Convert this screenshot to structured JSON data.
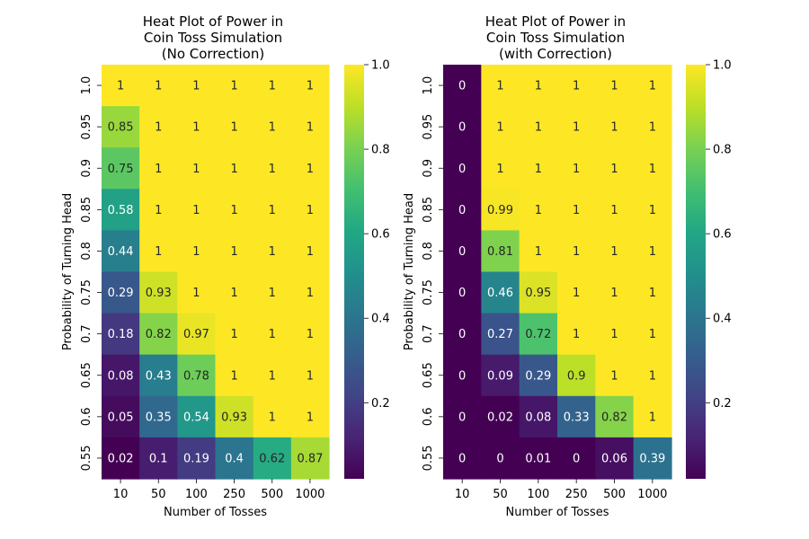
{
  "chart_data": [
    {
      "type": "heatmap",
      "title_lines": [
        "Heat Plot of Power in",
        "Coin Toss Simulation",
        "(No Correction)"
      ],
      "xlabel": "Number of Tosses",
      "ylabel": "Probability of Turning Head",
      "x_categories": [
        "10",
        "50",
        "100",
        "250",
        "500",
        "1000"
      ],
      "y_categories": [
        "1.0",
        "0.95",
        "0.9",
        "0.85",
        "0.8",
        "0.75",
        "0.7",
        "0.65",
        "0.6",
        "0.55"
      ],
      "values": [
        [
          1,
          1,
          1,
          1,
          1,
          1
        ],
        [
          0.85,
          1,
          1,
          1,
          1,
          1
        ],
        [
          0.75,
          1,
          1,
          1,
          1,
          1
        ],
        [
          0.58,
          1,
          1,
          1,
          1,
          1
        ],
        [
          0.44,
          1,
          1,
          1,
          1,
          1
        ],
        [
          0.29,
          0.93,
          1,
          1,
          1,
          1
        ],
        [
          0.18,
          0.82,
          0.97,
          1,
          1,
          1
        ],
        [
          0.08,
          0.43,
          0.78,
          1,
          1,
          1
        ],
        [
          0.05,
          0.35,
          0.54,
          0.93,
          1,
          1
        ],
        [
          0.02,
          0.1,
          0.19,
          0.4,
          0.62,
          0.87
        ]
      ],
      "colorbar": {
        "ticks": [
          0.2,
          0.4,
          0.6,
          0.8,
          1.0
        ],
        "tick_labels": [
          "0.2",
          "0.4",
          "0.6",
          "0.8",
          "1.0"
        ],
        "range": [
          0.02,
          1.0
        ]
      },
      "colormap": "viridis"
    },
    {
      "type": "heatmap",
      "title_lines": [
        "Heat Plot of Power in",
        "Coin Toss Simulation",
        "(with Correction)"
      ],
      "xlabel": "Number of Tosses",
      "ylabel": "Probability of Turning Head",
      "x_categories": [
        "10",
        "50",
        "100",
        "250",
        "500",
        "1000"
      ],
      "y_categories": [
        "1.0",
        "0.95",
        "0.9",
        "0.85",
        "0.8",
        "0.75",
        "0.7",
        "0.65",
        "0.6",
        "0.55"
      ],
      "values": [
        [
          0,
          1,
          1,
          1,
          1,
          1
        ],
        [
          0,
          1,
          1,
          1,
          1,
          1
        ],
        [
          0,
          1,
          1,
          1,
          1,
          1
        ],
        [
          0,
          0.99,
          1,
          1,
          1,
          1
        ],
        [
          0,
          0.81,
          1,
          1,
          1,
          1
        ],
        [
          0,
          0.46,
          0.95,
          1,
          1,
          1
        ],
        [
          0,
          0.27,
          0.72,
          1,
          1,
          1
        ],
        [
          0,
          0.09,
          0.29,
          0.9,
          1,
          1
        ],
        [
          0,
          0.02,
          0.08,
          0.33,
          0.82,
          1
        ],
        [
          0,
          0,
          0.01,
          0,
          0.06,
          0.39
        ]
      ],
      "colorbar": {
        "ticks": [
          0.2,
          0.4,
          0.6,
          0.8,
          1.0
        ],
        "tick_labels": [
          "0.2",
          "0.4",
          "0.6",
          "0.8",
          "1.0"
        ],
        "range": [
          0.02,
          1.0
        ]
      },
      "colormap": "viridis"
    }
  ]
}
